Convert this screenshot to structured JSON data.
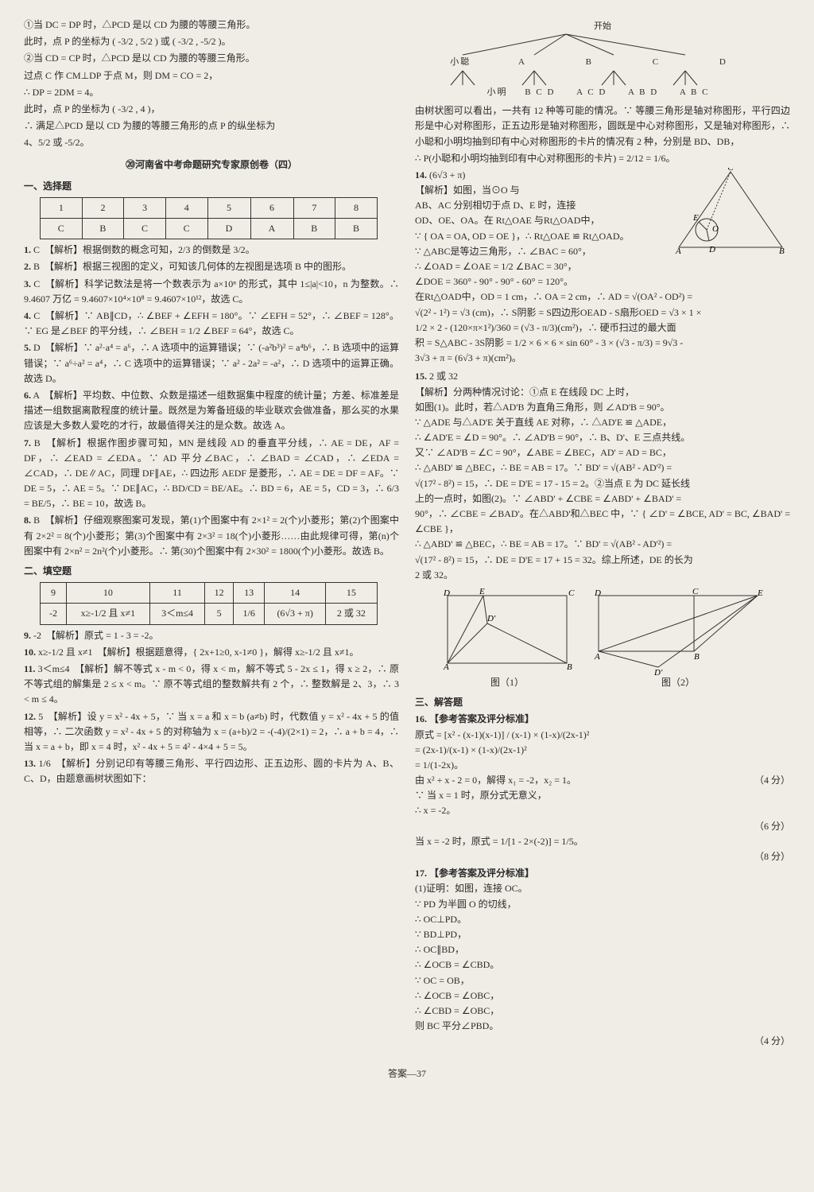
{
  "left": {
    "intro": [
      "①当 DC = DP 时，△PCD 是以 CD 为腰的等腰三角形。",
      "此时，点 P 的坐标为 ( -3/2 , 5/2 ) 或 ( -3/2 , -5/2 )。",
      "②当 CD = CP 时，△PCD 是以 CD 为腰的等腰三角形。",
      "过点 C 作 CM⊥DP 于点 M，则 DM = CO = 2，",
      "∴ DP = 2DM = 4。",
      "此时，点 P 的坐标为 ( -3/2 , 4 )，",
      "∴ 满足△PCD 是以 CD 为腰的等腰三角形的点 P 的纵坐标为",
      "4、5/2 或 -5/2。"
    ],
    "paper_title": "⑳河南省中考命题研究专家原创卷（四）",
    "select_head": "一、选择题",
    "select_table": {
      "cols": [
        "1",
        "2",
        "3",
        "4",
        "5",
        "6",
        "7",
        "8"
      ],
      "vals": [
        "C",
        "B",
        "C",
        "C",
        "D",
        "A",
        "B",
        "B"
      ]
    },
    "items": [
      {
        "n": "1.",
        "a": "C",
        "t": "【解析】根据倒数的概念可知，2/3 的倒数是 3/2。"
      },
      {
        "n": "2.",
        "a": "B",
        "t": "【解析】根据三视图的定义，可知该几何体的左视图是选项 B 中的图形。"
      },
      {
        "n": "3.",
        "a": "C",
        "t": "【解析】科学记数法是将一个数表示为 a×10ⁿ 的形式，其中 1≤|a|<10，n 为整数。∴ 9.4607 万亿 = 9.4607×10⁴×10⁸ = 9.4607×10¹²，故选 C。"
      },
      {
        "n": "4.",
        "a": "C",
        "t": "【解析】∵ AB∥CD，∴ ∠BEF + ∠EFH = 180°。∵ ∠EFH = 52°，∴ ∠BEF = 128°。∵ EG 是∠BEF 的平分线，∴ ∠BEH = 1/2 ∠BEF = 64°，故选 C。"
      },
      {
        "n": "5.",
        "a": "D",
        "t": "【解析】∵ a²·a⁴ = a⁶，∴ A 选项中的运算错误；∵ (-a²b³)² = a⁴b⁶，∴ B 选项中的运算错误；∵ a⁶÷a² = a⁴，∴ C 选项中的运算错误；∵ a² - 2a² = -a²，∴ D 选项中的运算正确。故选 D。"
      },
      {
        "n": "6.",
        "a": "A",
        "t": "【解析】平均数、中位数、众数是描述一组数据集中程度的统计量；方差、标准差是描述一组数据离散程度的统计量。既然是为筹备班级的毕业联欢会做准备，那么买的水果应该是大多数人爱吃的才行，故最值得关注的是众数。故选 A。"
      },
      {
        "n": "7.",
        "a": "B",
        "t": "【解析】根据作图步骤可知，MN 是线段 AD 的垂直平分线，∴ AE = DE，AF = DF，∴ ∠EAD = ∠EDA。∵ AD 平分∠BAC，∴ ∠BAD = ∠CAD，∴ ∠EDA = ∠CAD，∴ DE∥AC，同理 DF∥AE，∴ 四边形 AEDF 是菱形，∴ AE = DE = DF = AF。∵ DE = 5，∴ AE = 5。∵ DE∥AC，∴ BD/CD = BE/AE。∴ BD = 6，AE = 5，CD = 3，∴ 6/3 = BE/5，∴ BE = 10，故选 B。"
      },
      {
        "n": "8.",
        "a": "B",
        "t": "【解析】仔细观察图案可发现，第(1)个图案中有 2×1² = 2(个)小菱形；第(2)个图案中有 2×2² = 8(个)小菱形；第(3)个图案中有 2×3² = 18(个)小菱形……由此规律可得，第(n)个图案中有 2×n² = 2n²(个)小菱形。∴ 第(30)个图案中有 2×30² = 1800(个)小菱形。故选 B。"
      }
    ],
    "fill_head": "二、填空题",
    "fill_table": {
      "cols": [
        "9",
        "10",
        "11",
        "12",
        "13",
        "14",
        "15"
      ],
      "vals": [
        "-2",
        "x≥-1/2 且 x≠1",
        "3＜m≤4",
        "5",
        "1/6",
        "(6√3 + π)",
        "2 或 32"
      ]
    },
    "fill_items": [
      {
        "n": "9.",
        "a": "-2",
        "t": "【解析】原式 = 1 - 3 = -2。"
      },
      {
        "n": "10.",
        "a": "x≥-1/2 且 x≠1",
        "t": "【解析】根据题意得，{ 2x+1≥0, x-1≠0 }，解得 x≥-1/2 且 x≠1。"
      },
      {
        "n": "11.",
        "a": "3＜m≤4",
        "t": "【解析】解不等式 x - m < 0，得 x < m，解不等式 5 - 2x ≤ 1，得 x ≥ 2，∴ 原不等式组的解集是 2 ≤ x < m。∵ 原不等式组的整数解共有 2 个，∴ 整数解是 2、3，∴ 3 < m ≤ 4。"
      },
      {
        "n": "12.",
        "a": "5",
        "t": "【解析】设 y = x² - 4x + 5，∵ 当 x = a 和 x = b (a≠b) 时，代数值 y = x² - 4x + 5 的值相等，∴ 二次函数 y = x² - 4x + 5 的对称轴为 x = (a+b)/2 = -(-4)/(2×1) = 2，∴ a + b = 4，∴ 当 x = a + b，即 x = 4 时，x² - 4x + 5 = 4² - 4×4 + 5 = 5。"
      },
      {
        "n": "13.",
        "a": "1/6",
        "t": "【解析】分别记印有等腰三角形、平行四边形、正五边形、圆的卡片为 A、B、C、D，由题意画树状图如下："
      }
    ]
  },
  "right": {
    "tree": {
      "l1": "开始",
      "l2_left": "小聪",
      "l2_nodes": [
        "A",
        "B",
        "C",
        "D"
      ],
      "l3_left": "小明",
      "l3_nodes": [
        "B C D",
        "A C D",
        "A B D",
        "A B C"
      ]
    },
    "tree_text": "由树状图可以看出，一共有 12 种等可能的情况。∵ 等腰三角形是轴对称图形，平行四边形是中心对称图形，正五边形是轴对称图形，圆既是中心对称图形，又是轴对称图形，∴ 小聪和小明均抽到印有中心对称图形的卡片的情况有 2 种，分别是 BD、DB，",
    "tree_result": "∴ P(小聪和小明均抽到印有中心对称图形的卡片) = 2/12 = 1/6。",
    "q14": {
      "n": "14.",
      "a": "(6√3 + π)",
      "lines": [
        "【解析】如图，当⊙O 与",
        "AB、AC 分别相切于点 D、E 时，连接",
        "OD、OE、OA。在 Rt△OAE 与Rt△OAD中，",
        "∵ { OA = OA, OD = OE }，∴ Rt△OAE ≌ Rt△OAD。",
        "∵ △ABC是等边三角形，∴ ∠BAC = 60°，",
        "∴ ∠OAD = ∠OAE = 1/2 ∠BAC = 30°，",
        "∠DOE = 360° - 90° - 90° - 60° = 120°。",
        "在Rt△OAD中，OD = 1 cm，∴ OA = 2 cm，∴ AD = √(OA² - OD²) =",
        "√(2² - 1²) = √3 (cm)，∴ S阴影 = S四边形OEAD - S扇形OED = √3 × 1 ×",
        "1/2 × 2 - (120×π×1²)/360 = (√3 - π/3)(cm²)，∴ 硬币扫过的最大面",
        "积 = S△ABC - 3S阴影 = 1/2 × 6 × 6 × sin 60° - 3 × (√3 - π/3) = 9√3 -",
        "3√3 + π = (6√3 + π)(cm²)。"
      ]
    },
    "q15": {
      "n": "15.",
      "a": "2 或 32",
      "lines": [
        "【解析】分两种情况讨论：①点 E 在线段 DC 上时，",
        "如图(1)。此时，若△AD'B 为直角三角形，则 ∠AD'B = 90°。",
        "∵ △ADE 与△AD'E 关于直线 AE 对称，∴ △AD'E ≌ △ADE，",
        "∴ ∠AD'E = ∠D = 90°。∴ ∠AD'B = 90°，∴ B、D'、E 三点共线。",
        "又∵ ∠AD'B = ∠C = 90°，∠ABE = ∠BEC，AD' = AD = BC，",
        "∴ △ABD' ≌ △BEC，∴ BE = AB = 17。∵ BD' = √(AB² - AD'²) =",
        "√(17² - 8²) = 15，∴ DE = D'E = 17 - 15 = 2。②当点 E 为 DC 延长线",
        "上的一点时，如图(2)。∵ ∠ABD' + ∠CBE = ∠ABD' + ∠BAD' =",
        "90°，∴ ∠CBE = ∠BAD'。在△ABD'和△BEC 中，∵ { ∠D' = ∠BCE, AD' = BC, ∠BAD' = ∠CBE }，",
        "∴ △ABD' ≌ △BEC，∴ BE = AB = 17。∵ BD' = √(AB² - AD'²) =",
        "√(17² - 8²) = 15，∴ DE = D'E = 17 + 15 = 32。综上所述，DE 的长为",
        "2 或 32。"
      ],
      "fig1_label": "图（1）",
      "fig2_label": "图（2）"
    },
    "solve_head": "三、解答题",
    "q16": {
      "n": "16.",
      "head": "【参考答案及评分标准】",
      "lines": [
        "原式 = [x² - (x-1)(x-1)] / (x-1) × (1-x)/(2x-1)²",
        "= (2x-1)/(x-1) × (1-x)/(2x-1)²",
        "= 1/(1-2x)。"
      ],
      "score1": "（4 分）",
      "mid": [
        "由 x² + x - 2 = 0，解得 x₁ = -2，x₂ = 1。",
        "∵ 当 x = 1 时，原分式无意义，",
        "∴ x = -2。"
      ],
      "score2": "（6 分）",
      "end": "当 x = -2 时，原式 = 1/[1 - 2×(-2)] = 1/5。",
      "score3": "（8 分）"
    },
    "q17": {
      "n": "17.",
      "head": "【参考答案及评分标准】",
      "lines": [
        "(1)证明：如图，连接 OC。",
        "∵ PD 为半圆 O 的切线，",
        "∴ OC⊥PD。",
        "∵ BD⊥PD，",
        "∴ OC∥BD，",
        "∴ ∠OCB = ∠CBD。",
        "∵ OC = OB，",
        "∴ ∠OCB = ∠OBC，",
        "∴ ∠CBD = ∠OBC，",
        "则 BC 平分∠PBD。"
      ],
      "score": "（4 分）"
    }
  },
  "footer": "答案—37",
  "colors": {
    "bg": "#f0ede6",
    "text": "#2a2a2a",
    "border": "#333333",
    "svg_stroke": "#333333"
  },
  "typography": {
    "body_fontsize": 12,
    "line_height": 1.6
  }
}
